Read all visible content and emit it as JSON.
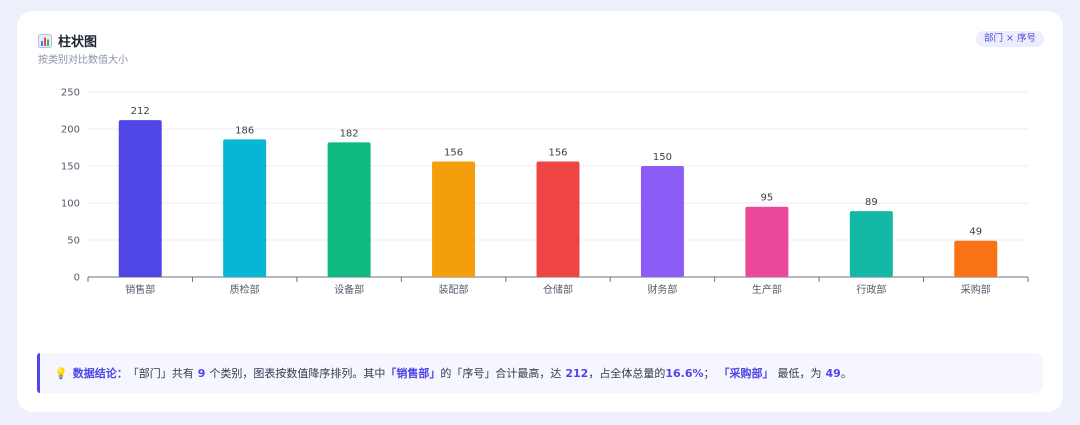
{
  "header": {
    "icon": "bar-chart-icon",
    "title": "柱状图",
    "subtitle": "按类别对比数值大小",
    "tag": "部门 × 序号"
  },
  "chart_data": {
    "type": "bar",
    "categories": [
      "销售部",
      "质检部",
      "设备部",
      "装配部",
      "仓储部",
      "财务部",
      "生产部",
      "行政部",
      "采购部"
    ],
    "values": [
      212,
      186,
      182,
      156,
      156,
      150,
      95,
      89,
      49
    ],
    "colors": [
      "#4f46e5",
      "#06b6d4",
      "#10b981",
      "#f59e0b",
      "#ef4444",
      "#8b5cf6",
      "#ec4899",
      "#14b8a6",
      "#f97316"
    ],
    "ylim": [
      0,
      250
    ],
    "yticks": [
      0,
      50,
      100,
      150,
      200,
      250
    ],
    "grid": true,
    "show_data_labels": true
  },
  "conclusion": {
    "icon": "lightbulb-icon",
    "label": "数据结论：",
    "t1": "「部门」共有",
    "count": "9",
    "t2": "个类别，图表按数值降序排列。其中",
    "top_name": "「销售部」",
    "t3": "的「序号」合计最高，达",
    "top_value": "212",
    "t4": "，占全体总量的",
    "top_pct": "16.6%",
    "t5": "；",
    "low_name": "「采购部」",
    "t6": "最低，为",
    "low_value": "49",
    "t7": "。"
  }
}
